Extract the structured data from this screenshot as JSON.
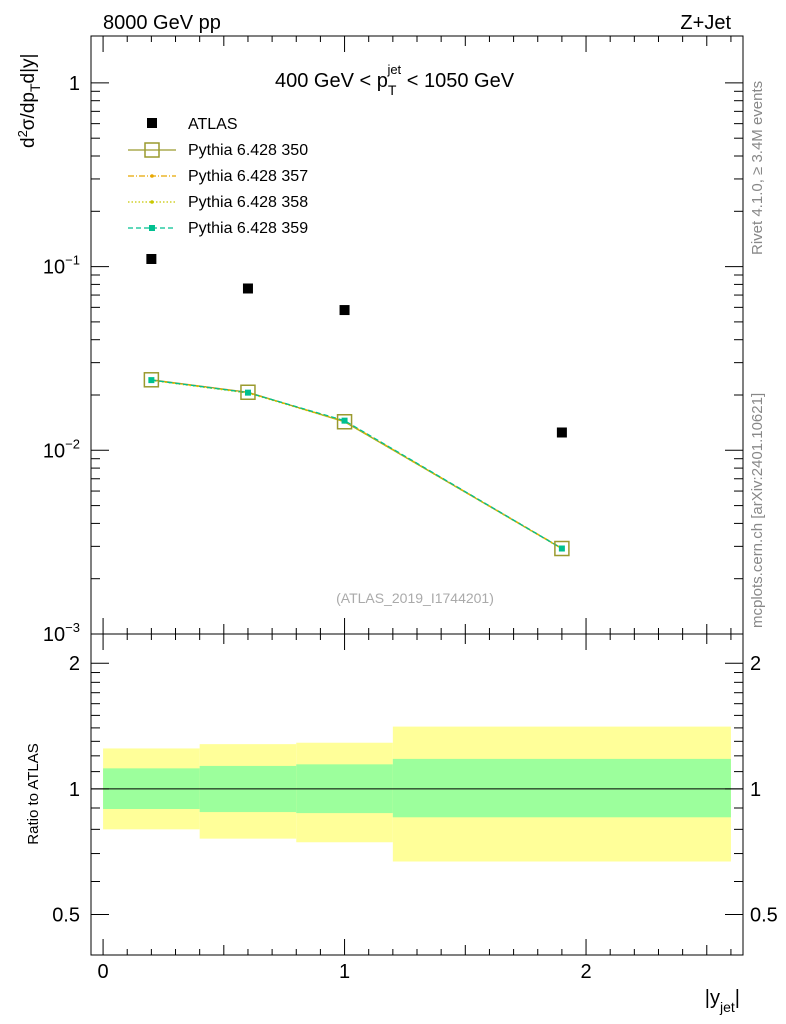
{
  "header": {
    "left_label": "8000 GeV pp",
    "right_label": "Z+Jet"
  },
  "side_labels": {
    "rivet": "Rivet 4.1.0, ≥ 3.4M events",
    "mcplots": "mcplots.cern.ch [arXiv:2401.10621]"
  },
  "chart_data": [
    {
      "type": "scatter",
      "title_main": "400 GeV < p",
      "title_sub": "T",
      "title_sup": "jet",
      "title_tail": " < 1050 GeV",
      "ylabel": "d²σ/dp_T d|y|",
      "yscale": "log",
      "ylim": [
        0.001,
        1.8
      ],
      "xlim": [
        -0.05,
        2.65
      ],
      "y_ticks": [
        {
          "value": 1,
          "label": "1"
        },
        {
          "value": 0.1,
          "label": "10",
          "exp": "−1"
        },
        {
          "value": 0.01,
          "label": "10",
          "exp": "−2"
        },
        {
          "value": 0.001,
          "label": "10",
          "exp": "−3"
        }
      ],
      "watermark": "(ATLAS_2019_I1744201)",
      "series": [
        {
          "name": "ATLAS",
          "style": "data",
          "color": "#000000",
          "x": [
            0.2,
            0.6,
            1.0,
            1.9
          ],
          "y": [
            0.11,
            0.076,
            0.058,
            0.0125
          ]
        },
        {
          "name": "Pythia 6.428 350",
          "style": "open-square",
          "color": "#9a9a2e",
          "x": [
            0.2,
            0.6,
            1.0,
            1.9
          ],
          "y": [
            0.0242,
            0.0207,
            0.0143,
            0.00292
          ]
        },
        {
          "name": "Pythia 6.428 357",
          "style": "dashdot",
          "color": "#e8a800",
          "x": [
            0.2,
            0.6,
            1.0,
            1.9
          ],
          "y": [
            0.0241,
            0.0206,
            0.0144,
            0.00293
          ]
        },
        {
          "name": "Pythia 6.428 358",
          "style": "dotted",
          "color": "#c8c800",
          "x": [
            0.2,
            0.6,
            1.0,
            1.9
          ],
          "y": [
            0.024,
            0.0205,
            0.0143,
            0.00291
          ]
        },
        {
          "name": "Pythia 6.428 359",
          "style": "dashed-square",
          "color": "#00c090",
          "x": [
            0.2,
            0.6,
            1.0,
            1.9
          ],
          "y": [
            0.0241,
            0.0206,
            0.0145,
            0.00292
          ]
        }
      ]
    },
    {
      "type": "area",
      "ylabel": "Ratio to ATLAS",
      "xlabel": "|y",
      "xlabel_sub": "jet",
      "xlabel_tail": "|",
      "ylim": [
        0.4,
        2.35
      ],
      "xlim": [
        -0.05,
        2.65
      ],
      "y_ticks": [
        {
          "value": 0.5,
          "label": "0.5"
        },
        {
          "value": 1,
          "label": "1"
        },
        {
          "value": 2,
          "label": "2"
        }
      ],
      "x_ticks": [
        {
          "value": 0,
          "label": "0"
        },
        {
          "value": 1,
          "label": "1"
        },
        {
          "value": 2,
          "label": "2"
        }
      ],
      "bins": [
        {
          "lo": 0.0,
          "hi": 0.4,
          "stat_lo": 0.895,
          "stat_hi": 1.12,
          "tot_lo": 0.8,
          "tot_hi": 1.25
        },
        {
          "lo": 0.4,
          "hi": 0.8,
          "stat_lo": 0.88,
          "stat_hi": 1.135,
          "tot_lo": 0.76,
          "tot_hi": 1.28
        },
        {
          "lo": 0.8,
          "hi": 1.2,
          "stat_lo": 0.875,
          "stat_hi": 1.145,
          "tot_lo": 0.745,
          "tot_hi": 1.29
        },
        {
          "lo": 1.2,
          "hi": 2.6,
          "stat_lo": 0.855,
          "stat_hi": 1.18,
          "tot_lo": 0.67,
          "tot_hi": 1.41
        }
      ],
      "stat_color": "#9cff9c",
      "total_color": "#ffff99",
      "reference": 1
    }
  ]
}
